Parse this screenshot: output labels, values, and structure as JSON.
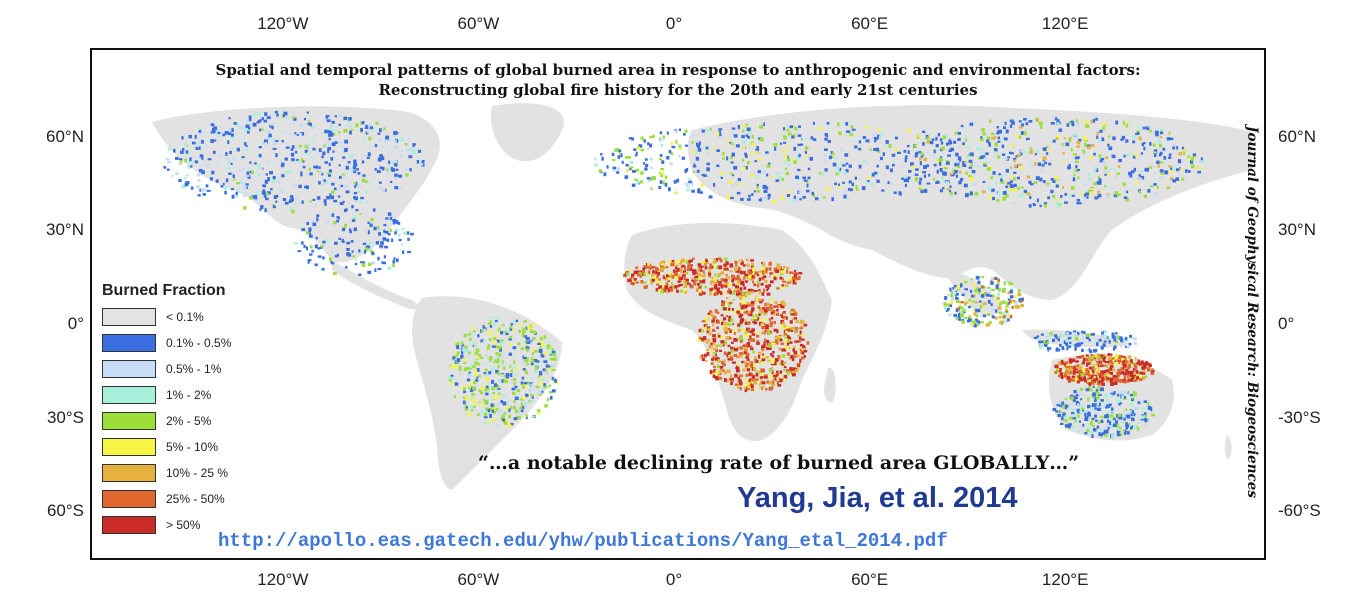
{
  "axes": {
    "longitude_ticks": [
      {
        "label": "120°W",
        "lon": -120
      },
      {
        "label": "60°W",
        "lon": -60
      },
      {
        "label": "0°",
        "lon": 0
      },
      {
        "label": "60°E",
        "lon": 60
      },
      {
        "label": "120°E",
        "lon": 120
      }
    ],
    "latitude_ticks_left": [
      {
        "label": "60°N",
        "lat": 60
      },
      {
        "label": "30°N",
        "lat": 30
      },
      {
        "label": "0°",
        "lat": 0
      },
      {
        "label": "30°S",
        "lat": -30
      },
      {
        "label": "60°S",
        "lat": -60
      }
    ],
    "latitude_ticks_right": [
      {
        "label": "60°N",
        "lat": 60
      },
      {
        "label": "30°N",
        "lat": 30
      },
      {
        "label": "0°",
        "lat": 0
      },
      {
        "label": "-30°S",
        "lat": -30
      },
      {
        "label": "-60°S",
        "lat": -60
      }
    ]
  },
  "title_lines": [
    "Spatial and temporal patterns of global burned area in response to anthropogenic and environmental factors:",
    "Reconstructing global fire history for the 20th and early 21st centuries"
  ],
  "journal": "Journal of Geophysical Research: Biogeosciences",
  "quote": "“…a notable declining rate of burned area GLOBALLY…”",
  "citation": "Yang, Jia, et al. 2014",
  "url": "http://apollo.eas.gatech.edu/yhw/publications/Yang_etal_2014.pdf",
  "legend": {
    "title": "Burned Fraction",
    "items": [
      {
        "label": "< 0.1%",
        "color": "#e3e3e3"
      },
      {
        "label": "0.1% - 0.5%",
        "color": "#3a6ee0"
      },
      {
        "label": "0.5% - 1%",
        "color": "#c6dcf7"
      },
      {
        "label": "1% - 2%",
        "color": "#a6f0dc"
      },
      {
        "label": "2% - 5%",
        "color": "#9cdf3a"
      },
      {
        "label": "5% - 10%",
        "color": "#f6f546"
      },
      {
        "label": "10% - 25 %",
        "color": "#e6b13f"
      },
      {
        "label": "25% - 50%",
        "color": "#e0682e"
      },
      {
        "label": "> 50%",
        "color": "#cb2a26"
      }
    ]
  }
}
